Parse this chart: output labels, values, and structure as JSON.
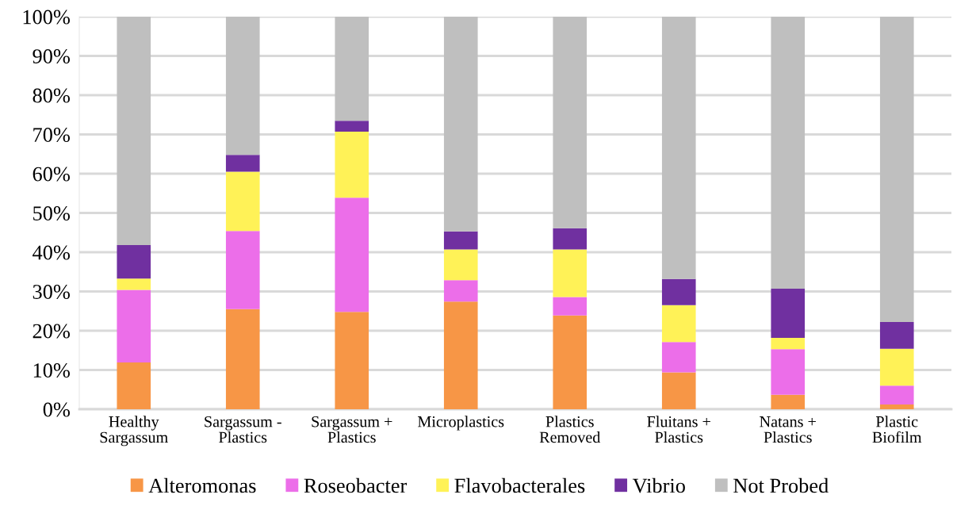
{
  "chart_data": {
    "type": "bar",
    "stacked": true,
    "categories": [
      "Healthy\nSargassum",
      "Sargassum -\nPlastics",
      "Sargassum +\nPlastics",
      "Microplastics",
      "Plastics\nRemoved",
      "Fluitans +\nPlastics",
      "Natans +\nPlastics",
      "Plastic\nBiofilm"
    ],
    "series": [
      {
        "name": "Alteromonas",
        "color": "#f79646",
        "values": [
          11.9,
          25.5,
          24.8,
          27.4,
          23.9,
          9.4,
          3.7,
          1.2
        ]
      },
      {
        "name": "Roseobacter",
        "color": "#ec6ee9",
        "values": [
          18.5,
          19.9,
          29.1,
          5.5,
          4.7,
          7.7,
          11.6,
          4.8
        ]
      },
      {
        "name": "Flavobacterales",
        "color": "#fff257",
        "values": [
          2.9,
          15.1,
          16.8,
          7.8,
          12.1,
          9.4,
          2.9,
          9.4
        ]
      },
      {
        "name": "Vibrio",
        "color": "#7030a0",
        "values": [
          8.5,
          4.3,
          2.8,
          4.6,
          5.4,
          6.7,
          12.5,
          6.8
        ]
      },
      {
        "name": "Not Probed",
        "color": "#bfbfbf",
        "values": [
          58.2,
          35.2,
          26.5,
          54.7,
          53.9,
          66.8,
          69.3,
          77.8
        ]
      }
    ],
    "ylim": [
      0,
      100
    ],
    "yticks": [
      {
        "value": 0,
        "label": "0%"
      },
      {
        "value": 10,
        "label": "10%"
      },
      {
        "value": 20,
        "label": "20%"
      },
      {
        "value": 30,
        "label": "30%"
      },
      {
        "value": 40,
        "label": "40%"
      },
      {
        "value": 50,
        "label": "50%"
      },
      {
        "value": 60,
        "label": "60%"
      },
      {
        "value": 70,
        "label": "70%"
      },
      {
        "value": 80,
        "label": "80%"
      },
      {
        "value": 90,
        "label": "90%"
      },
      {
        "value": 100,
        "label": "100%"
      }
    ],
    "grid": "y",
    "legend": "bottom"
  }
}
